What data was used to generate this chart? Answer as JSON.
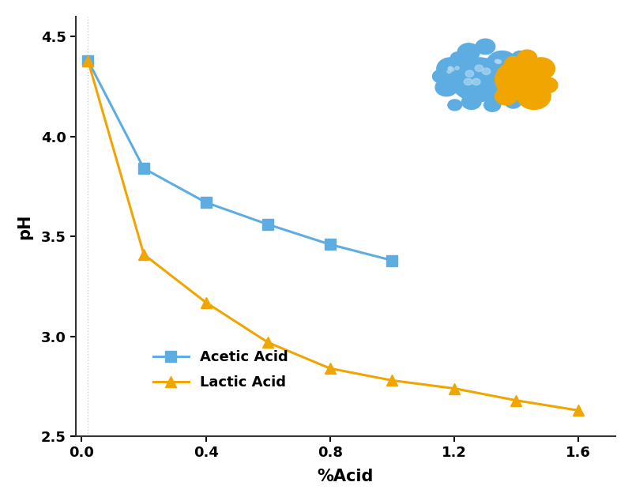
{
  "acetic_x": [
    0.02,
    0.2,
    0.4,
    0.6,
    0.8,
    1.0
  ],
  "acetic_y": [
    4.38,
    3.84,
    3.67,
    3.56,
    3.46,
    3.38
  ],
  "lactic_x": [
    0.02,
    0.2,
    0.4,
    0.6,
    0.8,
    1.0,
    1.2,
    1.4,
    1.6
  ],
  "lactic_y": [
    4.38,
    3.41,
    3.17,
    2.97,
    2.84,
    2.78,
    2.74,
    2.68,
    2.63
  ],
  "acetic_color": "#5DADE2",
  "lactic_color": "#F0A500",
  "xlabel": "%Acid",
  "ylabel": "pH",
  "xlim": [
    -0.02,
    1.72
  ],
  "ylim": [
    2.5,
    4.6
  ],
  "yticks": [
    2.5,
    3.0,
    3.5,
    4.0,
    4.5
  ],
  "xticks": [
    0.0,
    0.4,
    0.8,
    1.2,
    1.6
  ],
  "xtick_labels": [
    "0.0",
    "0.4",
    "0.8",
    "1.2",
    "1.6"
  ],
  "acetic_label": "Acetic Acid",
  "lactic_label": "Lactic Acid",
  "vline_x": 0.02,
  "vline_color": "#AED6F1",
  "linewidth": 2.2,
  "markersize": 10
}
